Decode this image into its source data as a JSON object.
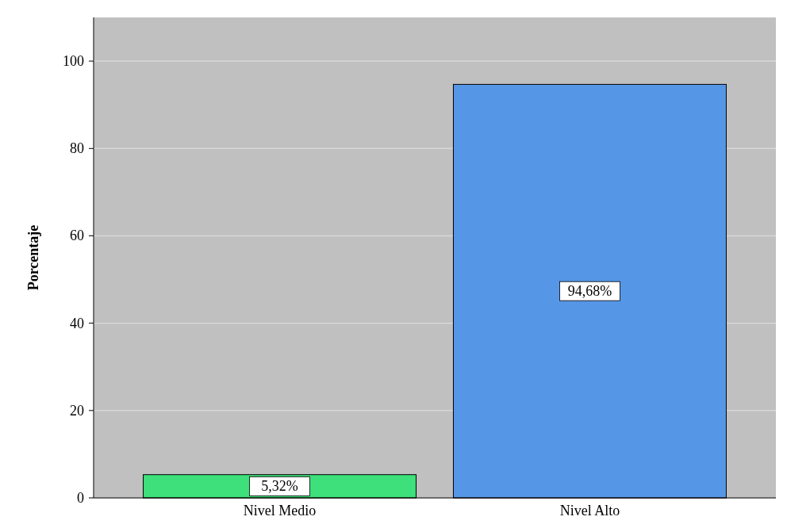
{
  "chart_data": {
    "type": "bar",
    "ylabel": "Porcentaje",
    "categories": [
      "Nivel Medio",
      "Nivel Alto"
    ],
    "values": [
      5.32,
      94.68
    ],
    "colors": [
      "#3de07a",
      "#5596e6"
    ],
    "value_labels": [
      "5,32%",
      "94,68%"
    ],
    "ylim": [
      0,
      110
    ],
    "yticks": [
      0,
      20,
      40,
      60,
      80,
      100
    ],
    "grid": "y"
  }
}
